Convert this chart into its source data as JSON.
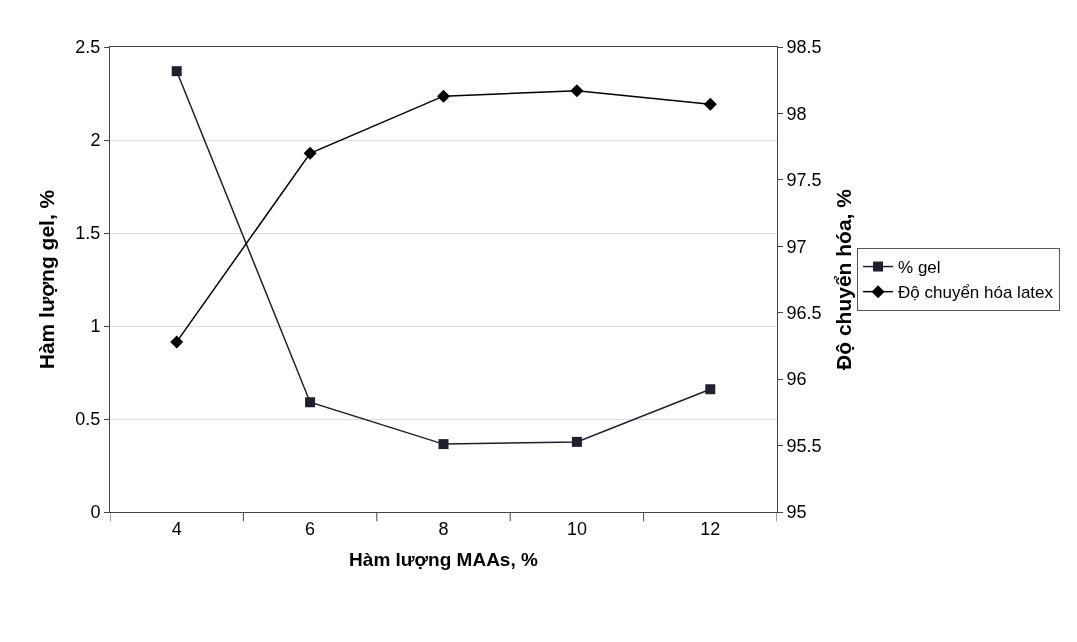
{
  "chart_data": {
    "type": "line",
    "xlabel": "Hàm lượng MAAs, %",
    "ylabel": "Hàm lượng gel, %",
    "y2label": "Độ chuyển hóa, %",
    "categories": [
      "4",
      "6",
      "8",
      "10",
      "12"
    ],
    "series": [
      {
        "name": "% gel",
        "color": "#1f1f2f",
        "marker": "square",
        "values": [
          2.37,
          0.59,
          0.365,
          0.377,
          0.66
        ]
      },
      {
        "name": "Độ chuyển hóa latex",
        "color": "#000000",
        "marker": "diamond",
        "axis": "y2",
        "values": [
          96.28,
          97.7,
          98.13,
          98.17,
          98.07
        ]
      }
    ],
    "ylim": [
      0,
      2.5
    ],
    "yticks": [
      0,
      0.5,
      1,
      1.5,
      2,
      2.5
    ],
    "y2lim": [
      95,
      98.5
    ],
    "y2ticks": [
      95,
      95.5,
      96,
      96.5,
      97,
      97.5,
      98,
      98.5
    ],
    "grid": "y",
    "legend": "right",
    "line_style": "solid"
  }
}
